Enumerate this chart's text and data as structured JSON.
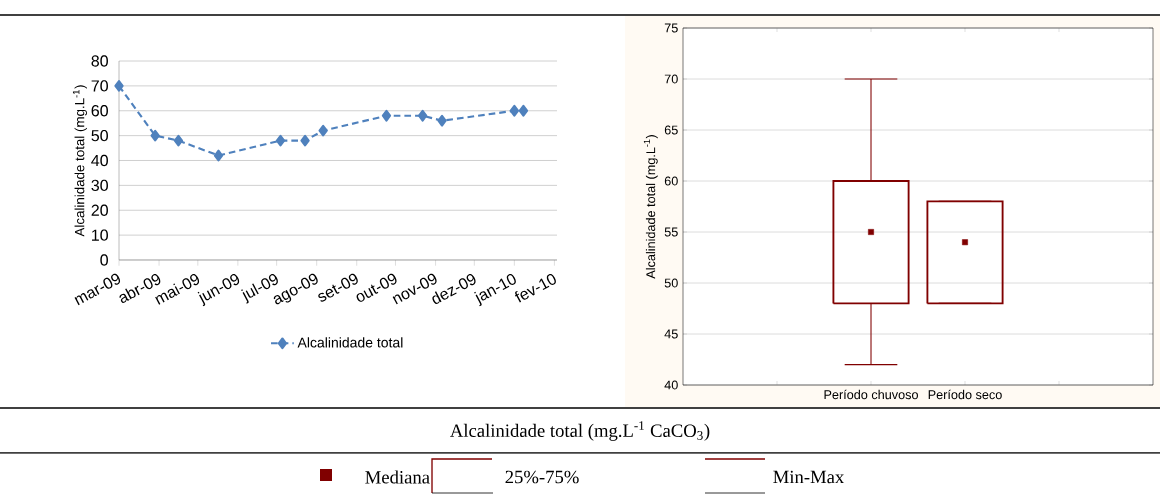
{
  "chart_data": [
    {
      "type": "line",
      "ylabel": "Alcalinidade total (mg.L$^{-1}$)",
      "x": [
        "2009-03-01",
        "2009-03-29",
        "2009-04-16",
        "2009-05-17",
        "2009-07-04",
        "2009-07-23",
        "2009-08-06",
        "2009-09-24",
        "2009-10-22",
        "2009-11-06",
        "2010-01-01",
        "2010-01-08"
      ],
      "series": [
        {
          "name": "Alcalinidade total",
          "color": "#4f81bd",
          "values": [
            70,
            50,
            48,
            42,
            48,
            48,
            52,
            58,
            58,
            56,
            60,
            60
          ]
        }
      ],
      "xlim": [
        "2009-03-01",
        "2010-02-03"
      ],
      "xticks": [
        {
          "value": "2009-03-01",
          "label": "mar-09"
        },
        {
          "value": "2009-04-01",
          "label": "abr-09"
        },
        {
          "value": "2009-05-01",
          "label": "mai-09"
        },
        {
          "value": "2009-06-01",
          "label": "jun-09"
        },
        {
          "value": "2009-07-01",
          "label": "jul-09"
        },
        {
          "value": "2009-08-01",
          "label": "ago-09"
        },
        {
          "value": "2009-09-01",
          "label": "set-09"
        },
        {
          "value": "2009-10-01",
          "label": "out-09"
        },
        {
          "value": "2009-11-01",
          "label": "nov-09"
        },
        {
          "value": "2009-12-01",
          "label": "dez-09"
        },
        {
          "value": "2010-01-01",
          "label": "jan-10"
        },
        {
          "value": "2010-02-01",
          "label": "fev-10"
        }
      ],
      "ylim": [
        0,
        80
      ],
      "yticks": [
        0,
        10,
        20,
        30,
        40,
        50,
        60,
        70,
        80
      ],
      "grid": "y",
      "legend": "bottom",
      "marker": "diamond",
      "line_style": "dashed"
    },
    {
      "type": "box",
      "ylabel": "Alcalinidade total (mg.L$^{-1}$)",
      "categories": [
        "Período chuvoso",
        "Período seco"
      ],
      "series": [
        {
          "color": "#800000",
          "boxes": [
            {
              "low": 42,
              "q1": 48,
              "median": 55,
              "q3": 60,
              "high": 70
            },
            {
              "low": 48,
              "q1": 48,
              "median": 54,
              "q3": 58,
              "high": 58
            }
          ]
        }
      ],
      "ylim": [
        40,
        75
      ],
      "yticks": [
        40,
        45,
        50,
        55,
        60,
        65,
        70,
        75
      ],
      "grid": "y",
      "annotations": [
        "Alcalinidade total (mg.L$^{-1}$ CaCO$_{3}$)",
        "Mediana",
        "25%-75%",
        "Min-Max"
      ]
    }
  ]
}
